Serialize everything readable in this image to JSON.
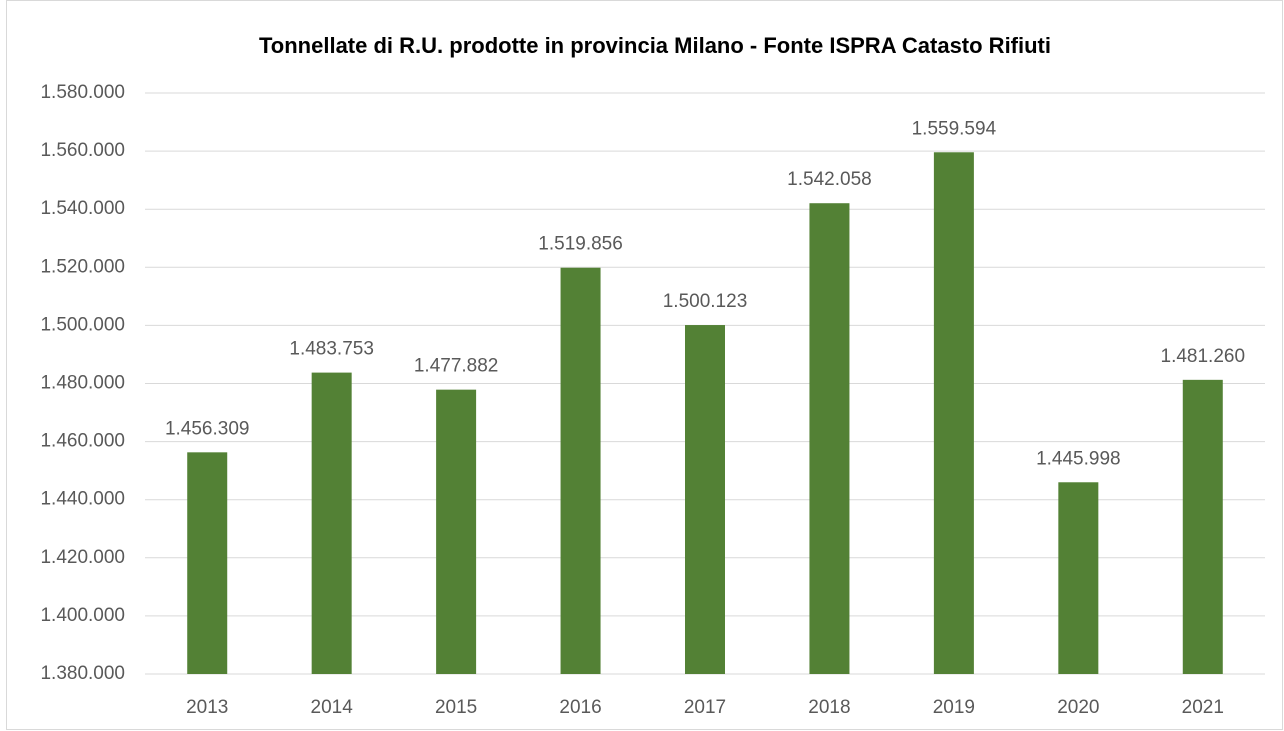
{
  "chart_data": {
    "type": "bar",
    "title": "Tonnellate di R.U. prodotte in provincia Milano - Fonte ISPRA Catasto Rifiuti",
    "categories": [
      "2013",
      "2014",
      "2015",
      "2016",
      "2017",
      "2018",
      "2019",
      "2020",
      "2021"
    ],
    "values": [
      1456309,
      1483753,
      1477882,
      1519856,
      1500123,
      1542058,
      1559594,
      1445998,
      1481260
    ],
    "value_labels": [
      "1.456.309",
      "1.483.753",
      "1.477.882",
      "1.519.856",
      "1.500.123",
      "1.542.058",
      "1.559.594",
      "1.445.998",
      "1.481.260"
    ],
    "color": "#538135",
    "ylim": [
      1380000,
      1580000
    ],
    "yticks": [
      {
        "value": 1380000,
        "label": "1.380.000"
      },
      {
        "value": 1400000,
        "label": "1.400.000"
      },
      {
        "value": 1420000,
        "label": "1.420.000"
      },
      {
        "value": 1440000,
        "label": "1.440.000"
      },
      {
        "value": 1460000,
        "label": "1.460.000"
      },
      {
        "value": 1480000,
        "label": "1.480.000"
      },
      {
        "value": 1500000,
        "label": "1.500.000"
      },
      {
        "value": 1520000,
        "label": "1.520.000"
      },
      {
        "value": 1540000,
        "label": "1.540.000"
      },
      {
        "value": 1560000,
        "label": "1.560.000"
      },
      {
        "value": 1580000,
        "label": "1.580.000"
      }
    ],
    "grid": true
  }
}
